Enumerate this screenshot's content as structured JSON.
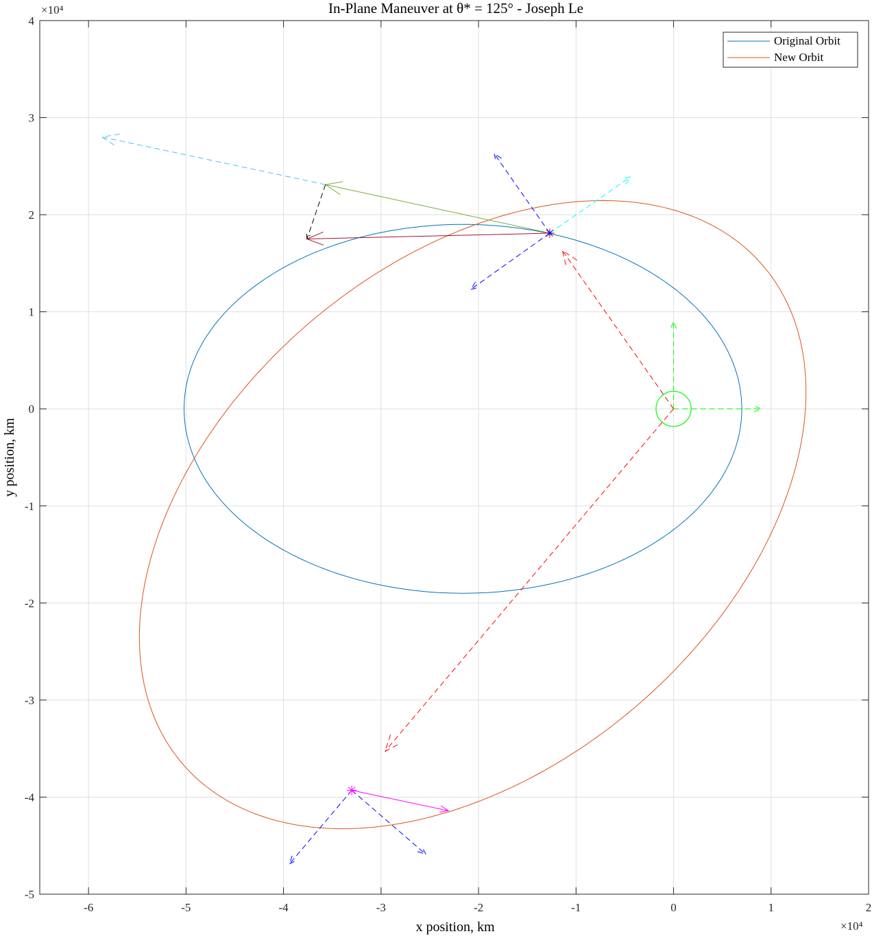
{
  "chart_data": {
    "type": "line",
    "title": "In-Plane Maneuver at θ* = 125° - Joseph Le",
    "xlabel": "x position, km",
    "ylabel": "y position, km",
    "x_exponent_label": "×10⁴",
    "y_exponent_label": "×10⁴",
    "scale": 10000,
    "xlim": [
      -6.5,
      2.0
    ],
    "ylim": [
      -5.0,
      4.0
    ],
    "xticks": [
      -6,
      -5,
      -4,
      -3,
      -2,
      -1,
      0,
      1,
      2
    ],
    "yticks": [
      -5,
      -4,
      -3,
      -2,
      -1,
      0,
      1,
      2,
      3,
      4
    ],
    "xtick_labels": [
      "-6",
      "-5",
      "-4",
      "-3",
      "-2",
      "-1",
      "0",
      "1",
      "2"
    ],
    "ytick_labels": [
      "-5",
      "-4",
      "-3",
      "-2",
      "-1",
      "0",
      "1",
      "2",
      "3",
      "4"
    ],
    "grid": true,
    "legend_position": "top-right",
    "series": [
      {
        "name": "Original Orbit",
        "color": "#0072BD",
        "shape": "ellipse",
        "center": [
          -2.16,
          0.0
        ],
        "semi_axes": [
          2.86,
          1.9
        ],
        "rotation_deg": 0
      },
      {
        "name": "New Orbit",
        "color": "#D95319",
        "shape": "ellipse",
        "center": [
          -2.06,
          -1.09
        ],
        "semi_axes": [
          3.93,
          2.59
        ],
        "rotation_deg": 41
      }
    ],
    "planet": {
      "center": [
        0,
        0
      ],
      "radius": 0.18,
      "color": "#00FF00"
    },
    "markers": [
      {
        "name": "maneuver-point",
        "x": -1.27,
        "y": 1.81,
        "color": "#FF0000",
        "symbol": "asterisk"
      },
      {
        "name": "maneuver-point-overlay",
        "x": -1.27,
        "y": 1.81,
        "color": "#0000FF",
        "symbol": "asterisk-small"
      },
      {
        "name": "new-orbit-point",
        "x": -3.3,
        "y": -3.93,
        "color": "#FF00FF",
        "symbol": "asterisk"
      }
    ],
    "vectors": [
      {
        "name": "x-axis-vector",
        "from": [
          0,
          0
        ],
        "to": [
          0.9,
          0
        ],
        "color": "#00FF00",
        "dashed": true
      },
      {
        "name": "y-axis-vector",
        "from": [
          0,
          0
        ],
        "to": [
          0,
          0.9
        ],
        "color": "#00FF00",
        "dashed": true
      },
      {
        "name": "radial-position-vector",
        "from": [
          0,
          0
        ],
        "to": [
          -1.14,
          1.63
        ],
        "color": "#FF0000",
        "dashed": true
      },
      {
        "name": "apse-line-vector",
        "from": [
          0,
          0
        ],
        "to": [
          -2.96,
          -3.53
        ],
        "color": "#FF0000",
        "dashed": true
      },
      {
        "name": "radial-unit-up",
        "from": [
          -1.27,
          1.81
        ],
        "to": [
          -1.84,
          2.63
        ],
        "color": "#0000FF",
        "dashed": true
      },
      {
        "name": "radial-unit-down",
        "from": [
          -1.27,
          1.81
        ],
        "to": [
          -2.08,
          1.23
        ],
        "color": "#0000FF",
        "dashed": true
      },
      {
        "name": "normal-unit-vector",
        "from": [
          -1.27,
          1.81
        ],
        "to": [
          -0.44,
          2.39
        ],
        "color": "#00FFFF",
        "dashed": true
      },
      {
        "name": "old-velocity-vector",
        "from": [
          -1.27,
          1.81
        ],
        "to": [
          -3.57,
          2.31
        ],
        "color": "#77AC30",
        "dashed": false
      },
      {
        "name": "long-velocity-vector",
        "from": [
          -3.57,
          2.31
        ],
        "to": [
          -5.86,
          2.8
        ],
        "color": "#4DBEEE",
        "dashed": true
      },
      {
        "name": "delta-v-vector",
        "from": [
          -3.57,
          2.31
        ],
        "to": [
          -3.76,
          1.75
        ],
        "color": "#000000",
        "dashed": true
      },
      {
        "name": "new-velocity-vector",
        "from": [
          -1.27,
          1.81
        ],
        "to": [
          -3.76,
          1.75
        ],
        "color": "#A2142F",
        "dashed": false
      },
      {
        "name": "velocity-at-new-point",
        "from": [
          -3.3,
          -3.93
        ],
        "to": [
          -2.31,
          -4.14
        ],
        "color": "#FF00FF",
        "dashed": false
      },
      {
        "name": "new-point-unit-left",
        "from": [
          -3.3,
          -3.93
        ],
        "to": [
          -3.94,
          -4.69
        ],
        "color": "#0000FF",
        "dashed": true
      },
      {
        "name": "new-point-unit-right",
        "from": [
          -3.3,
          -3.93
        ],
        "to": [
          -2.54,
          -4.59
        ],
        "color": "#0000FF",
        "dashed": true
      }
    ]
  }
}
